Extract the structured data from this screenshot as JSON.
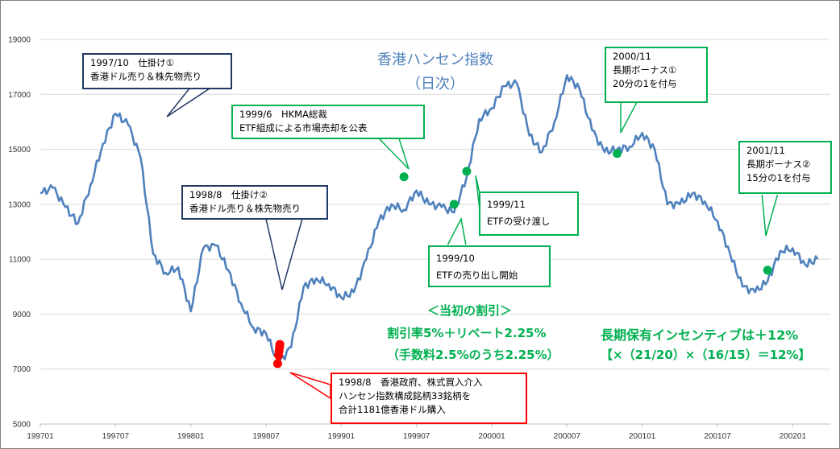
{
  "chart_data": {
    "type": "line",
    "title": "香港ハンセン指数",
    "subtitle": "（日次）",
    "xlabel": "",
    "ylabel": "",
    "x_ticks": [
      "199701",
      "199707",
      "199801",
      "199807",
      "199901",
      "199907",
      "200001",
      "200007",
      "200101",
      "200107",
      "200201"
    ],
    "y_ticks": [
      5000,
      7000,
      9000,
      11000,
      13000,
      15000,
      17000,
      19000
    ],
    "ylim": [
      5000,
      19000
    ],
    "xlim": [
      "1997-01",
      "2002-04"
    ],
    "grid": "horizontal",
    "series": [
      {
        "color": "#4f81bd",
        "x": [
          "1997-01",
          "1997-02",
          "1997-03",
          "1997-04",
          "1997-05",
          "1997-06",
          "1997-07",
          "1997-08",
          "1997-09",
          "1997-10",
          "1997-11",
          "1997-12",
          "1998-01",
          "1998-02",
          "1998-03",
          "1998-04",
          "1998-05",
          "1998-06",
          "1998-07",
          "1998-08",
          "1998-09",
          "1998-10",
          "1998-11",
          "1998-12",
          "1999-01",
          "1999-02",
          "1999-03",
          "1999-04",
          "1999-05",
          "1999-06",
          "1999-07",
          "1999-08",
          "1999-09",
          "1999-10",
          "1999-11",
          "1999-12",
          "2000-01",
          "2000-02",
          "2000-03",
          "2000-04",
          "2000-05",
          "2000-06",
          "2000-07",
          "2000-08",
          "2000-09",
          "2000-10",
          "2000-11",
          "2000-12",
          "2001-01",
          "2001-02",
          "2001-03",
          "2001-04",
          "2001-05",
          "2001-06",
          "2001-07",
          "2001-08",
          "2001-09",
          "2001-10",
          "2001-11",
          "2001-12",
          "2002-01",
          "2002-02",
          "2002-03"
        ],
        "values": [
          13400,
          13600,
          12900,
          12300,
          13700,
          15200,
          16300,
          15900,
          14700,
          11200,
          10500,
          10700,
          9100,
          11400,
          11500,
          10600,
          9400,
          8500,
          8300,
          7200,
          7800,
          10000,
          10300,
          10100,
          9600,
          9800,
          11000,
          12400,
          13000,
          12800,
          13500,
          13000,
          12900,
          12700,
          14000,
          16100,
          16500,
          17300,
          17400,
          15500,
          14900,
          16000,
          17700,
          17200,
          15700,
          14900,
          15000,
          15100,
          15600,
          15000,
          13000,
          13000,
          13400,
          13100,
          12400,
          11200,
          10000,
          9800,
          10200,
          11300,
          11400,
          10800,
          11000
        ]
      }
    ],
    "markers": {
      "red": [
        {
          "date": "1998-08",
          "value": 7200
        },
        {
          "date": "1998-08",
          "value": 7500
        },
        {
          "date": "1998-08",
          "value": 7650
        },
        {
          "date": "1998-08",
          "value": 7800
        },
        {
          "date": "1998-08",
          "value": 7900
        }
      ],
      "green": [
        {
          "date": "1999-06",
          "value": 14000
        },
        {
          "date": "1999-10",
          "value": 13000
        },
        {
          "date": "1999-11",
          "value": 14200
        },
        {
          "date": "2000-11",
          "value": 14850
        },
        {
          "date": "2001-11",
          "value": 10600
        }
      ]
    }
  },
  "annotations": {
    "a1": {
      "lines": [
        "1997/10　仕掛け①",
        "香港ドル売り＆株先物売り"
      ]
    },
    "a2": {
      "lines": [
        "1998/8　仕掛け②",
        "香港ドル売り＆株先物売り"
      ]
    },
    "a3": {
      "lines": [
        "1999/6　HKMA総裁",
        "ETF組成による市場売却を公表"
      ]
    },
    "a4": {
      "lines": [
        "1999/11",
        "ETFの受け渡し"
      ]
    },
    "a5": {
      "lines": [
        "1999/10",
        "ETFの売り出し開始"
      ]
    },
    "a6": {
      "lines": [
        "2000/11",
        "長期ボーナス①",
        "20分の1を付与"
      ]
    },
    "a7": {
      "lines": [
        "2001/11",
        "長期ボーナス②",
        "15分の1を付与"
      ]
    },
    "a8": {
      "lines": [
        "1998/8　香港政府、株式買入介入",
        "ハンセン指数構成銘柄33銘柄を",
        "合計1181億香港ドル購入"
      ]
    }
  },
  "discount": {
    "heading": "＜当初の割引＞",
    "line1": "割引率5%＋リベート2.25%",
    "line2": "（手数料2.5%のうち2.25%）"
  },
  "incentive": {
    "line1": "長期保有インセンティブは＋12%",
    "line2": "【×（21/20）×（16/15）＝12%】"
  },
  "colors": {
    "line": "#4f81bd",
    "navy_box": "#1f3864",
    "green_box": "#00b050",
    "red_box": "#ff0000",
    "red_marker": "#ff0000",
    "green_marker": "#00b050"
  }
}
